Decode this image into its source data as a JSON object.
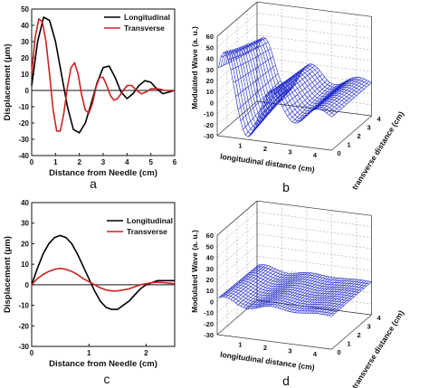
{
  "chart_data": [
    {
      "panel": "a",
      "type": "line",
      "xlabel": "Distance from Needle (cm)",
      "ylabel": "Displacement (μm)",
      "xlim": [
        0,
        6
      ],
      "ylim": [
        -40,
        50
      ],
      "xticks": [
        0,
        1,
        2,
        3,
        4,
        5,
        6
      ],
      "yticks": [
        -40,
        -30,
        -20,
        -10,
        0,
        10,
        20,
        30,
        40,
        50
      ],
      "zero_line": true,
      "series": [
        {
          "name": "Longitudinal",
          "color": "#000000",
          "x": [
            0,
            0.25,
            0.5,
            0.75,
            1.0,
            1.25,
            1.5,
            1.75,
            2.0,
            2.25,
            2.5,
            2.75,
            3.0,
            3.25,
            3.5,
            3.75,
            4.0,
            4.25,
            4.5,
            4.75,
            5.0,
            5.25,
            5.5,
            5.75,
            6.0
          ],
          "y": [
            3,
            30,
            45,
            43,
            30,
            10,
            -10,
            -24,
            -26,
            -20,
            -8,
            5,
            14,
            15,
            8,
            -1,
            -5,
            -2,
            3,
            6,
            5,
            1,
            -2,
            -1,
            0
          ]
        },
        {
          "name": "Transverse",
          "color": "#cc2222",
          "x": [
            0,
            0.15,
            0.3,
            0.45,
            0.6,
            0.75,
            0.9,
            1.05,
            1.2,
            1.35,
            1.5,
            1.65,
            1.8,
            1.95,
            2.1,
            2.25,
            2.4,
            2.55,
            2.7,
            2.85,
            3.0,
            3.15,
            3.3,
            3.45,
            3.6,
            3.8,
            4.0,
            4.2,
            4.4,
            4.6,
            4.8,
            5.0,
            5.3,
            5.6,
            6.0
          ],
          "y": [
            10,
            33,
            44,
            42,
            30,
            10,
            -12,
            -25,
            -25,
            -14,
            2,
            14,
            17,
            10,
            -3,
            -12,
            -14,
            -8,
            2,
            8,
            8,
            3,
            -3,
            -6,
            -5,
            -1,
            3,
            3,
            0,
            -2,
            -1,
            1,
            1,
            0,
            0
          ]
        }
      ]
    },
    {
      "panel": "b",
      "type": "surface",
      "xlabel": "longitudinal distance (cm)",
      "ylabel": "transverse distance (cm)",
      "zlabel": "Modulated Wave (a. u.)",
      "xticks": [
        1,
        2,
        3,
        4
      ],
      "yticks": [
        0,
        1,
        2,
        3,
        4
      ],
      "zlim": [
        -30,
        60
      ],
      "zticks": [
        -30,
        -20,
        -10,
        0,
        10,
        20,
        30,
        40,
        50,
        60
      ],
      "amplitude": 55,
      "color": "#1b25c9"
    },
    {
      "panel": "c",
      "type": "line",
      "xlabel": "Distance from Needle (cm)",
      "ylabel": "Displacement (μm)",
      "xlim": [
        0,
        2.5
      ],
      "ylim": [
        -30,
        40
      ],
      "xticks": [
        0,
        1,
        2
      ],
      "yticks": [
        -30,
        -20,
        -10,
        0,
        10,
        20,
        30,
        40
      ],
      "zero_line": true,
      "series": [
        {
          "name": "Longitudinal",
          "color": "#000000",
          "x": [
            0,
            0.1,
            0.2,
            0.3,
            0.4,
            0.5,
            0.6,
            0.7,
            0.8,
            0.9,
            1.0,
            1.1,
            1.2,
            1.3,
            1.4,
            1.5,
            1.6,
            1.7,
            1.8,
            1.9,
            2.0,
            2.1,
            2.2,
            2.3,
            2.4,
            2.5
          ],
          "y": [
            0,
            8,
            15,
            20,
            23,
            24,
            23,
            20,
            15,
            9,
            3,
            -3,
            -8,
            -11,
            -12,
            -12,
            -10,
            -8,
            -5,
            -2,
            0,
            1,
            2,
            2,
            2,
            2
          ]
        },
        {
          "name": "Transverse",
          "color": "#cc2222",
          "x": [
            0,
            0.1,
            0.2,
            0.3,
            0.4,
            0.5,
            0.6,
            0.7,
            0.8,
            0.9,
            1.0,
            1.1,
            1.2,
            1.3,
            1.4,
            1.5,
            1.6,
            1.7,
            1.8,
            1.9,
            2.0,
            2.1,
            2.2,
            2.3,
            2.4,
            2.5
          ],
          "y": [
            0,
            3,
            5,
            6.5,
            7.5,
            8,
            7.5,
            6.5,
            5,
            3,
            1.5,
            0,
            -1.5,
            -2.5,
            -3,
            -3,
            -2.5,
            -2,
            -1,
            0,
            0.5,
            1,
            1.2,
            1,
            0.8,
            0.5
          ]
        }
      ]
    },
    {
      "panel": "d",
      "type": "surface",
      "xlabel": "longitudinal distance (cm)",
      "ylabel": "transverse distance (cm)",
      "zlabel": "Modulated Wave (a. u.)",
      "xticks": [
        1,
        2,
        3,
        4
      ],
      "yticks": [
        0,
        1,
        2,
        3,
        4
      ],
      "zlim": [
        -30,
        60
      ],
      "zticks": [
        -30,
        -20,
        -10,
        0,
        10,
        20,
        30,
        40,
        50,
        60
      ],
      "amplitude": 6,
      "color": "#1b25c9"
    }
  ],
  "panel_letters": [
    "a",
    "b",
    "c",
    "d"
  ]
}
